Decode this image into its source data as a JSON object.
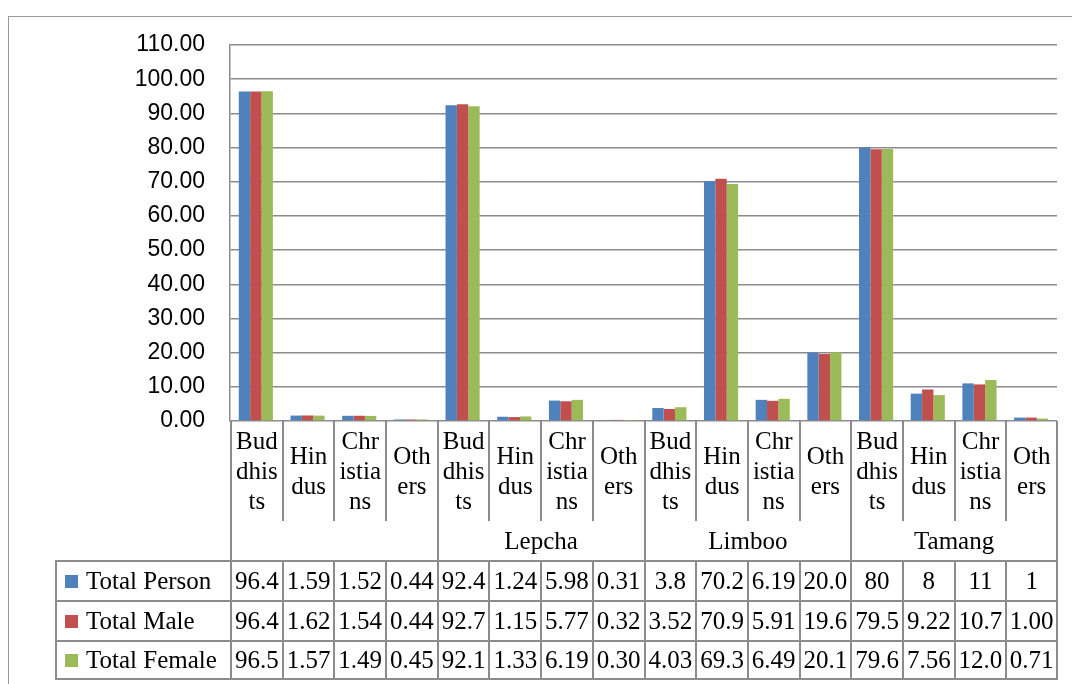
{
  "chart_data": {
    "type": "bar",
    "categories": [
      "Buddhists",
      "Hindus",
      "Christians",
      "Others",
      "Buddhists",
      "Hindus",
      "Christians",
      "Others",
      "Buddhists",
      "Hindus",
      "Christians",
      "Others",
      "Buddhists",
      "Hindus",
      "Christians",
      "Others"
    ],
    "series": [
      {
        "name": "Total Person",
        "color": "#4f81bd",
        "values": [
          96.4,
          1.59,
          1.52,
          0.44,
          92.4,
          1.24,
          5.98,
          0.31,
          3.8,
          70.2,
          6.19,
          20.0,
          80,
          8,
          11,
          1
        ],
        "value_labels": [
          "96.4",
          "1.59",
          "1.52",
          "0.44",
          "92.4",
          "1.24",
          "5.98",
          "0.31",
          "3.8",
          "70.2",
          "6.19",
          "20.0",
          "80",
          "8",
          "11",
          "1"
        ]
      },
      {
        "name": "Total Male",
        "color": "#c0504d",
        "values": [
          96.4,
          1.62,
          1.54,
          0.44,
          92.7,
          1.15,
          5.77,
          0.32,
          3.52,
          70.9,
          5.91,
          19.6,
          79.5,
          9.22,
          10.7,
          1.0
        ],
        "value_labels": [
          "96.4",
          "1.62",
          "1.54",
          "0.44",
          "92.7",
          "1.15",
          "5.77",
          "0.32",
          "3.52",
          "70.9",
          "5.91",
          "19.6",
          "79.5",
          "9.22",
          "10.7",
          "1.00"
        ]
      },
      {
        "name": "Total Female",
        "color": "#9bbb59",
        "values": [
          96.5,
          1.57,
          1.49,
          0.45,
          92.1,
          1.33,
          6.19,
          0.3,
          4.03,
          69.3,
          6.49,
          20.1,
          79.6,
          7.56,
          12.0,
          0.71
        ],
        "value_labels": [
          "96.5",
          "1.57",
          "1.49",
          "0.45",
          "92.1",
          "1.33",
          "6.19",
          "0.30",
          "4.03",
          "69.3",
          "6.49",
          "20.1",
          "79.6",
          "7.56",
          "12.0",
          "0.71"
        ]
      }
    ],
    "ylim": [
      0,
      110
    ],
    "yticks": [
      {
        "value": 0,
        "label": "0.00"
      },
      {
        "value": 10,
        "label": "10.00"
      },
      {
        "value": 20,
        "label": "20.00"
      },
      {
        "value": 30,
        "label": "30.00"
      },
      {
        "value": 40,
        "label": "40.00"
      },
      {
        "value": 50,
        "label": "50.00"
      },
      {
        "value": 60,
        "label": "60.00"
      },
      {
        "value": 70,
        "label": "70.00"
      },
      {
        "value": 80,
        "label": "80.00"
      },
      {
        "value": 90,
        "label": "90.00"
      },
      {
        "value": 100,
        "label": "100.00"
      },
      {
        "value": 110,
        "label": "110.00"
      }
    ],
    "grid": "y",
    "legend": "bottom",
    "annotations": [
      "Lepcha",
      "Limboo",
      "Tamang"
    ]
  }
}
